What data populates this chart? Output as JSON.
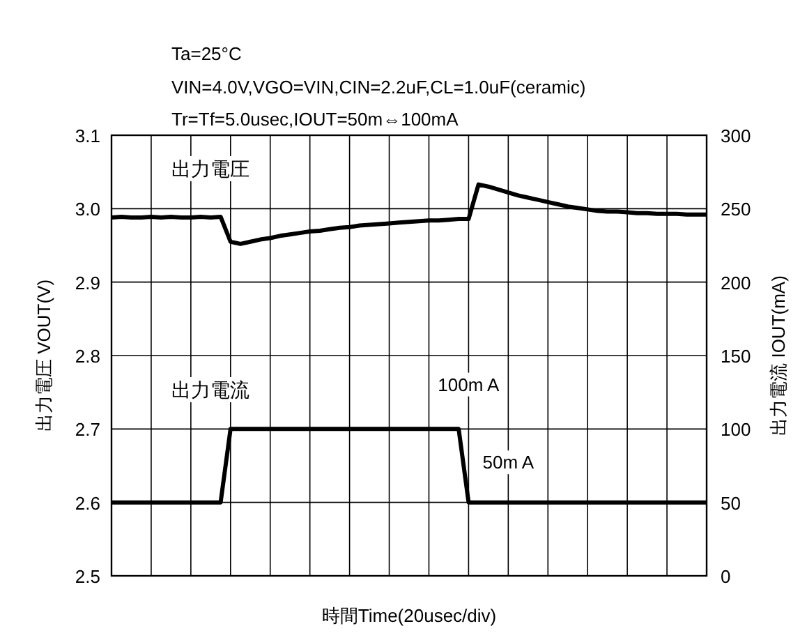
{
  "chart_data": {
    "type": "line",
    "subtitle": "Ta=25°C",
    "annotations": [
      "VIN=4.0V,VGO=VIN,CIN=2.2uF,CL=1.0uF(ceramic)",
      "Tr=Tf=5.0usec,IOUT=50m⇔100mA",
      "100m A",
      "50m A"
    ],
    "xlabel": "時間Time(20usec/div)",
    "ylabel": "出力電圧 VOUT(V)",
    "y2label": "出力電流 IOUT(mA)",
    "categories": [
      null,
      null,
      null,
      null,
      null,
      null,
      null,
      null,
      null,
      null,
      null,
      null,
      null,
      null,
      null,
      null,
      null,
      null,
      null,
      null,
      null,
      null,
      null,
      null,
      null,
      null,
      null,
      null,
      null,
      null,
      null,
      null,
      null,
      null,
      null,
      null,
      null,
      null,
      null,
      null,
      null,
      null,
      null,
      null,
      null,
      null,
      null,
      null,
      null,
      null,
      null,
      null,
      null,
      null,
      null,
      null,
      null,
      null,
      null,
      null,
      null
    ],
    "ylim": [
      2.5,
      3.1
    ],
    "yticks": [
      2.5,
      2.6,
      2.7,
      2.8,
      2.9,
      {
        "value": 3.0,
        "label": "3.0"
      },
      3.1
    ],
    "y2lim": [
      0,
      300
    ],
    "y2ticks": [
      0,
      50,
      100,
      150,
      200,
      250,
      300
    ],
    "grid": true,
    "series": [
      {
        "name": "出力電圧",
        "color": "#000000",
        "values": [
          2.988,
          2.989,
          2.988,
          2.988,
          2.989,
          2.988,
          2.989,
          2.988,
          2.988,
          2.989,
          2.988,
          2.989,
          2.955,
          2.952,
          2.955,
          2.958,
          2.96,
          2.963,
          2.965,
          2.967,
          2.969,
          2.97,
          2.972,
          2.974,
          2.975,
          2.977,
          2.978,
          2.979,
          2.98,
          2.981,
          2.982,
          2.983,
          2.984,
          2.984,
          2.985,
          2.986,
          2.986,
          3.033,
          3.03,
          3.026,
          3.022,
          3.018,
          3.015,
          3.012,
          3.009,
          3.006,
          3.003,
          3.001,
          2.999,
          2.997,
          2.996,
          2.996,
          2.995,
          2.994,
          2.994,
          2.993,
          2.993,
          2.993,
          2.992,
          2.992,
          2.992
        ]
      },
      {
        "name": "出力電流",
        "color": "#000000",
        "axis": "y2",
        "values": [
          50,
          50,
          50,
          50,
          50,
          50,
          50,
          50,
          50,
          50,
          50,
          50,
          100,
          100,
          100,
          100,
          100,
          100,
          100,
          100,
          100,
          100,
          100,
          100,
          100,
          100,
          100,
          100,
          100,
          100,
          100,
          100,
          100,
          100,
          100,
          100,
          50,
          50,
          50,
          50,
          50,
          50,
          50,
          50,
          50,
          50,
          50,
          50,
          50,
          50,
          50,
          50,
          50,
          50,
          50,
          50,
          50,
          50,
          50,
          50,
          50
        ]
      }
    ]
  }
}
